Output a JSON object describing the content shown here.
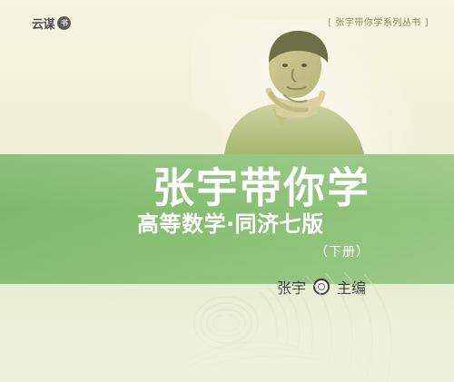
{
  "cover": {
    "publisher": {
      "text": "云谋",
      "badge": "书"
    },
    "series": "[ 张宇带你学系列丛书 ]",
    "title": "张宇带你学",
    "subtitle": "高等数学·同济七版",
    "volume": "（下册）",
    "author": "张宇",
    "role": "主编",
    "colors": {
      "band": "#86be72",
      "text_white": "#ffffff",
      "text_dark": "#333333",
      "series": "#7f8d61",
      "background": "#f2efd8"
    },
    "icons": {
      "publisher_badge": "publisher-badge-icon",
      "circle_mark": "circle-mark-icon"
    }
  }
}
